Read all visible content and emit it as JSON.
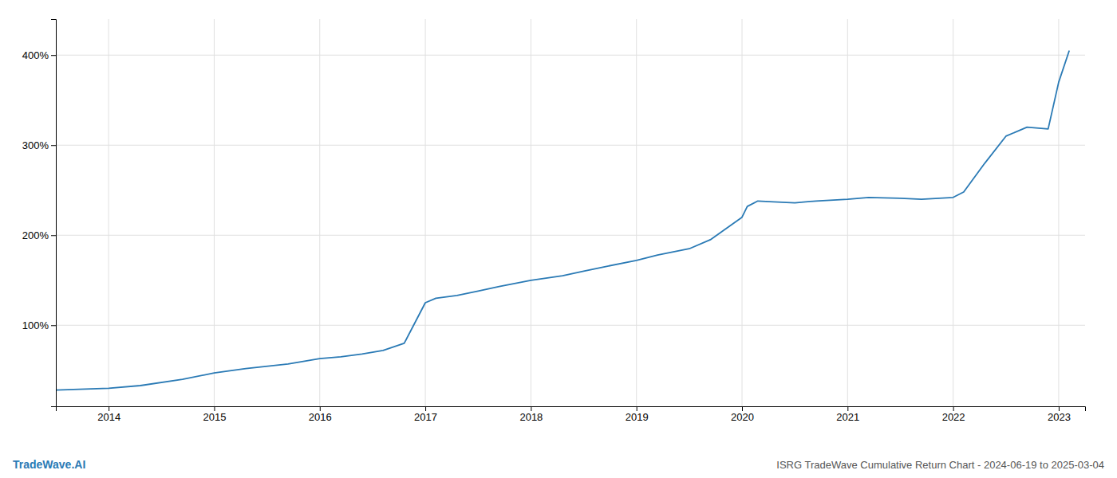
{
  "chart_data": {
    "type": "line",
    "title": "ISRG TradeWave Cumulative Return Chart - 2024-06-19 to 2025-03-04",
    "annotations": [
      "TradeWave.AI"
    ],
    "color": "#2a7ab5",
    "x": [
      2013.5,
      2014.0,
      2014.3,
      2014.7,
      2015.0,
      2015.3,
      2015.7,
      2016.0,
      2016.2,
      2016.4,
      2016.6,
      2016.8,
      2017.0,
      2017.1,
      2017.3,
      2017.5,
      2017.7,
      2018.0,
      2018.3,
      2018.5,
      2018.7,
      2019.0,
      2019.2,
      2019.5,
      2019.7,
      2020.0,
      2020.05,
      2020.15,
      2020.3,
      2020.5,
      2020.7,
      2021.0,
      2021.2,
      2021.5,
      2021.7,
      2022.0,
      2022.1,
      2022.3,
      2022.5,
      2022.7,
      2022.9,
      2023.0,
      2023.1
    ],
    "values": [
      28,
      30,
      33,
      40,
      47,
      52,
      57,
      63,
      65,
      68,
      72,
      80,
      125,
      130,
      133,
      138,
      143,
      150,
      155,
      160,
      165,
      172,
      178,
      185,
      195,
      220,
      232,
      238,
      237,
      236,
      238,
      240,
      242,
      241,
      240,
      242,
      248,
      280,
      310,
      320,
      318,
      370,
      405
    ],
    "xlim": [
      2013.5,
      2023.25
    ],
    "ylim": [
      10,
      440
    ],
    "xticks": [
      2014,
      2015,
      2016,
      2017,
      2018,
      2019,
      2020,
      2021,
      2022,
      2023
    ],
    "yticks": [
      {
        "value": 100,
        "label": "100%"
      },
      {
        "value": 200,
        "label": "200%"
      },
      {
        "value": 300,
        "label": "300%"
      },
      {
        "value": 400,
        "label": "400%"
      }
    ],
    "grid": true
  }
}
